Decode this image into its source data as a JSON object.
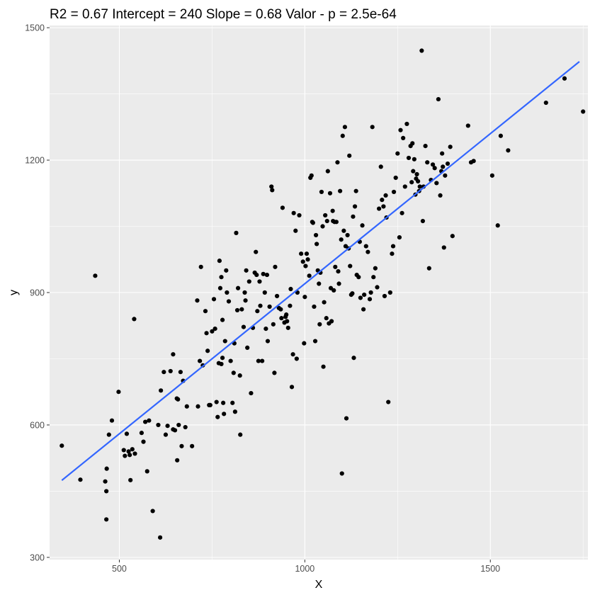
{
  "chart_data": {
    "type": "scatter",
    "title": "R2 =  0.67 Intercept = 240  Slope = 0.68  Valor - p = 2.5e-64",
    "xlabel": "X",
    "ylabel": "y",
    "xlim": [
      312,
      1763
    ],
    "ylim": [
      295,
      1505
    ],
    "xticks": [
      500,
      1000,
      1500
    ],
    "yticks": [
      300,
      600,
      900,
      1200,
      1500
    ],
    "grid": true,
    "colors": {
      "points": "#000000",
      "line": "#3366ff",
      "panel": "#ebebeb",
      "grid": "#ffffff"
    },
    "regression": {
      "intercept": 240,
      "slope": 0.68,
      "x": [
        345,
        1740
      ]
    },
    "points": [
      [
        345,
        553
      ],
      [
        395,
        476
      ],
      [
        435,
        938
      ],
      [
        462,
        472
      ],
      [
        465,
        450
      ],
      [
        466,
        501
      ],
      [
        465,
        386
      ],
      [
        472,
        578
      ],
      [
        480,
        610
      ],
      [
        498,
        675
      ],
      [
        512,
        543
      ],
      [
        515,
        530
      ],
      [
        520,
        580
      ],
      [
        525,
        540
      ],
      [
        528,
        532
      ],
      [
        530,
        475
      ],
      [
        535,
        545
      ],
      [
        540,
        840
      ],
      [
        542,
        535
      ],
      [
        560,
        582
      ],
      [
        565,
        562
      ],
      [
        570,
        607
      ],
      [
        575,
        495
      ],
      [
        580,
        610
      ],
      [
        590,
        405
      ],
      [
        605,
        600
      ],
      [
        610,
        345
      ],
      [
        612,
        678
      ],
      [
        620,
        720
      ],
      [
        625,
        578
      ],
      [
        630,
        598
      ],
      [
        638,
        722
      ],
      [
        645,
        760
      ],
      [
        645,
        590
      ],
      [
        650,
        588
      ],
      [
        655,
        660
      ],
      [
        656,
        520
      ],
      [
        658,
        658
      ],
      [
        660,
        600
      ],
      [
        665,
        720
      ],
      [
        668,
        552
      ],
      [
        672,
        700
      ],
      [
        678,
        595
      ],
      [
        682,
        642
      ],
      [
        696,
        552
      ],
      [
        710,
        882
      ],
      [
        712,
        642
      ],
      [
        717,
        745
      ],
      [
        720,
        958
      ],
      [
        725,
        735
      ],
      [
        732,
        858
      ],
      [
        735,
        808
      ],
      [
        738,
        768
      ],
      [
        742,
        645
      ],
      [
        745,
        645
      ],
      [
        750,
        812
      ],
      [
        755,
        885
      ],
      [
        758,
        818
      ],
      [
        762,
        652
      ],
      [
        765,
        618
      ],
      [
        768,
        740
      ],
      [
        770,
        972
      ],
      [
        772,
        910
      ],
      [
        775,
        738
      ],
      [
        775,
        935
      ],
      [
        778,
        752
      ],
      [
        778,
        838
      ],
      [
        780,
        650
      ],
      [
        782,
        625
      ],
      [
        785,
        790
      ],
      [
        788,
        950
      ],
      [
        790,
        900
      ],
      [
        795,
        880
      ],
      [
        800,
        745
      ],
      [
        805,
        650
      ],
      [
        808,
        718
      ],
      [
        810,
        785
      ],
      [
        812,
        630
      ],
      [
        815,
        1035
      ],
      [
        818,
        860
      ],
      [
        820,
        910
      ],
      [
        825,
        712
      ],
      [
        826,
        578
      ],
      [
        830,
        862
      ],
      [
        835,
        822
      ],
      [
        838,
        900
      ],
      [
        840,
        882
      ],
      [
        842,
        950
      ],
      [
        845,
        775
      ],
      [
        850,
        925
      ],
      [
        855,
        672
      ],
      [
        860,
        820
      ],
      [
        865,
        945
      ],
      [
        868,
        992
      ],
      [
        870,
        940
      ],
      [
        872,
        858
      ],
      [
        875,
        745
      ],
      [
        878,
        925
      ],
      [
        880,
        870
      ],
      [
        885,
        745
      ],
      [
        888,
        942
      ],
      [
        892,
        900
      ],
      [
        895,
        818
      ],
      [
        898,
        940
      ],
      [
        900,
        790
      ],
      [
        905,
        868
      ],
      [
        910,
        1140
      ],
      [
        912,
        1132
      ],
      [
        915,
        828
      ],
      [
        918,
        718
      ],
      [
        920,
        958
      ],
      [
        925,
        892
      ],
      [
        930,
        865
      ],
      [
        935,
        862
      ],
      [
        937,
        842
      ],
      [
        940,
        1092
      ],
      [
        945,
        832
      ],
      [
        948,
        845
      ],
      [
        950,
        850
      ],
      [
        952,
        835
      ],
      [
        955,
        820
      ],
      [
        960,
        870
      ],
      [
        962,
        908
      ],
      [
        965,
        686
      ],
      [
        968,
        760
      ],
      [
        970,
        1080
      ],
      [
        975,
        1040
      ],
      [
        978,
        750
      ],
      [
        980,
        900
      ],
      [
        985,
        1075
      ],
      [
        990,
        988
      ],
      [
        995,
        970
      ],
      [
        998,
        785
      ],
      [
        1000,
        890
      ],
      [
        1002,
        960
      ],
      [
        1005,
        988
      ],
      [
        1008,
        975
      ],
      [
        1012,
        938
      ],
      [
        1015,
        1160
      ],
      [
        1018,
        1165
      ],
      [
        1020,
        1060
      ],
      [
        1022,
        1058
      ],
      [
        1025,
        868
      ],
      [
        1028,
        790
      ],
      [
        1030,
        1030
      ],
      [
        1032,
        1010
      ],
      [
        1035,
        950
      ],
      [
        1038,
        920
      ],
      [
        1040,
        828
      ],
      [
        1042,
        945
      ],
      [
        1045,
        1128
      ],
      [
        1048,
        1050
      ],
      [
        1050,
        732
      ],
      [
        1052,
        878
      ],
      [
        1055,
        1075
      ],
      [
        1058,
        842
      ],
      [
        1060,
        1062
      ],
      [
        1062,
        1175
      ],
      [
        1065,
        830
      ],
      [
        1068,
        1125
      ],
      [
        1070,
        910
      ],
      [
        1072,
        835
      ],
      [
        1075,
        1085
      ],
      [
        1076,
        1062
      ],
      [
        1078,
        905
      ],
      [
        1080,
        1060
      ],
      [
        1082,
        958
      ],
      [
        1085,
        1060
      ],
      [
        1088,
        1195
      ],
      [
        1090,
        948
      ],
      [
        1092,
        920
      ],
      [
        1095,
        1130
      ],
      [
        1098,
        1020
      ],
      [
        1100,
        490
      ],
      [
        1102,
        1255
      ],
      [
        1105,
        1040
      ],
      [
        1108,
        1275
      ],
      [
        1110,
        1005
      ],
      [
        1112,
        615
      ],
      [
        1115,
        1030
      ],
      [
        1118,
        1000
      ],
      [
        1120,
        1210
      ],
      [
        1122,
        960
      ],
      [
        1125,
        895
      ],
      [
        1128,
        898
      ],
      [
        1130,
        1072
      ],
      [
        1132,
        752
      ],
      [
        1135,
        1095
      ],
      [
        1138,
        1130
      ],
      [
        1140,
        940
      ],
      [
        1145,
        935
      ],
      [
        1148,
        1015
      ],
      [
        1150,
        888
      ],
      [
        1155,
        1052
      ],
      [
        1158,
        862
      ],
      [
        1160,
        895
      ],
      [
        1165,
        1005
      ],
      [
        1170,
        992
      ],
      [
        1175,
        885
      ],
      [
        1178,
        900
      ],
      [
        1182,
        1275
      ],
      [
        1185,
        935
      ],
      [
        1190,
        955
      ],
      [
        1195,
        912
      ],
      [
        1200,
        1090
      ],
      [
        1205,
        1185
      ],
      [
        1208,
        1110
      ],
      [
        1212,
        1095
      ],
      [
        1215,
        892
      ],
      [
        1218,
        1120
      ],
      [
        1220,
        1070
      ],
      [
        1225,
        652
      ],
      [
        1230,
        900
      ],
      [
        1235,
        988
      ],
      [
        1238,
        1005
      ],
      [
        1240,
        1128
      ],
      [
        1245,
        1160
      ],
      [
        1250,
        1215
      ],
      [
        1255,
        1025
      ],
      [
        1258,
        1268
      ],
      [
        1262,
        1080
      ],
      [
        1265,
        1250
      ],
      [
        1270,
        1140
      ],
      [
        1275,
        1282
      ],
      [
        1280,
        1205
      ],
      [
        1285,
        1232
      ],
      [
        1288,
        1150
      ],
      [
        1290,
        1238
      ],
      [
        1292,
        1175
      ],
      [
        1295,
        1202
      ],
      [
        1298,
        1122
      ],
      [
        1300,
        1158
      ],
      [
        1302,
        1168
      ],
      [
        1305,
        1152
      ],
      [
        1308,
        1130
      ],
      [
        1310,
        1140
      ],
      [
        1315,
        1448
      ],
      [
        1318,
        1062
      ],
      [
        1320,
        1140
      ],
      [
        1325,
        1232
      ],
      [
        1330,
        1195
      ],
      [
        1335,
        955
      ],
      [
        1340,
        1155
      ],
      [
        1345,
        1190
      ],
      [
        1350,
        1182
      ],
      [
        1355,
        1148
      ],
      [
        1360,
        1338
      ],
      [
        1365,
        1120
      ],
      [
        1368,
        1175
      ],
      [
        1370,
        1215
      ],
      [
        1372,
        1185
      ],
      [
        1375,
        1002
      ],
      [
        1378,
        1165
      ],
      [
        1385,
        1192
      ],
      [
        1392,
        1230
      ],
      [
        1398,
        1028
      ],
      [
        1440,
        1278
      ],
      [
        1448,
        1195
      ],
      [
        1455,
        1198
      ],
      [
        1505,
        1165
      ],
      [
        1520,
        1052
      ],
      [
        1528,
        1255
      ],
      [
        1548,
        1222
      ],
      [
        1650,
        1330
      ],
      [
        1700,
        1385
      ],
      [
        1750,
        1310
      ]
    ]
  }
}
